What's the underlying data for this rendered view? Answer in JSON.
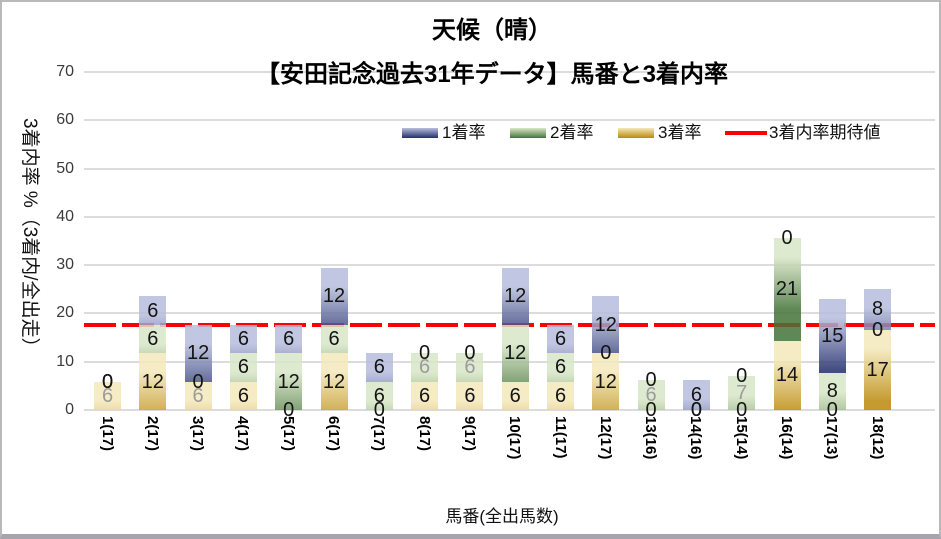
{
  "title": {
    "line1": "天候（晴）",
    "line2": "【安田記念過去31年データ】馬番と3着内率"
  },
  "legend": [
    {
      "label": "1着率",
      "type": "bar",
      "color_light": "#b7bedd",
      "color_dark": "#222e6b"
    },
    {
      "label": "2着率",
      "type": "bar",
      "color_light": "#d9e7c7",
      "color_dark": "#45743a"
    },
    {
      "label": "3着率",
      "type": "bar",
      "color_light": "#f4e8ba",
      "color_dark": "#bb8a0b"
    },
    {
      "label": "3着内率期待値",
      "type": "line",
      "color": "#fe0000"
    }
  ],
  "chart_data": {
    "type": "bar",
    "stacked": true,
    "title": "天候（晴）【安田記念過去31年データ】馬番と3着内率",
    "xlabel": "馬番(全出馬数)",
    "ylabel": "3着内率 %（3着内/全出走）",
    "ylim": [
      0,
      70
    ],
    "yticks": [
      0,
      10,
      20,
      30,
      40,
      50,
      60,
      70
    ],
    "grid": "horizontal",
    "legend_position": "top-right",
    "categories": [
      "1(17)",
      "2(17)",
      "3(17)",
      "4(17)",
      "5(17)",
      "6(17)",
      "7(17)",
      "8(17)",
      "9(17)",
      "10(17)",
      "11(17)",
      "12(17)",
      "13(16)",
      "14(16)",
      "15(14)",
      "16(14)",
      "17(13)",
      "18(12)"
    ],
    "series": [
      {
        "name": "1着率",
        "values": [
          0,
          5.88,
          11.76,
          5.88,
          5.88,
          11.76,
          5.88,
          0,
          0,
          11.76,
          5.88,
          11.76,
          0,
          6.25,
          0,
          0,
          15.38,
          8.33
        ],
        "labels": [
          "0",
          "6",
          "12",
          "6",
          "6",
          "12",
          "6",
          "0",
          "0",
          "12",
          "6",
          "12",
          "0",
          "6",
          "0",
          "0",
          "15",
          "8"
        ]
      },
      {
        "name": "2着率",
        "values": [
          0,
          5.88,
          0,
          5.88,
          11.76,
          5.88,
          5.88,
          5.88,
          5.88,
          11.76,
          5.88,
          0,
          6.25,
          0,
          7.14,
          21.43,
          7.69,
          0
        ],
        "labels": [
          "0",
          "6",
          "0",
          "6",
          "12",
          "6",
          "6",
          "6",
          "6",
          "12",
          "6",
          "0",
          "6",
          "0",
          "7",
          "21",
          "8",
          "0"
        ]
      },
      {
        "name": "3着率",
        "values": [
          5.88,
          11.76,
          5.88,
          5.88,
          0,
          11.76,
          0,
          5.88,
          5.88,
          5.88,
          5.88,
          11.76,
          0,
          0,
          0,
          14.29,
          0,
          16.67
        ],
        "labels": [
          "6",
          "12",
          "6",
          "6",
          "0",
          "12",
          "0",
          "6",
          "6",
          "6",
          "6",
          "12",
          "0",
          "0",
          "0",
          "14",
          "0",
          "17"
        ]
      }
    ],
    "expected_line": {
      "name": "3着内率期待値",
      "value": 17.6,
      "color": "#fe0000"
    },
    "gray_label_cells": [
      [
        0,
        2
      ],
      [
        2,
        2
      ],
      [
        7,
        1
      ],
      [
        8,
        1
      ],
      [
        12,
        1
      ],
      [
        14,
        1
      ]
    ]
  }
}
